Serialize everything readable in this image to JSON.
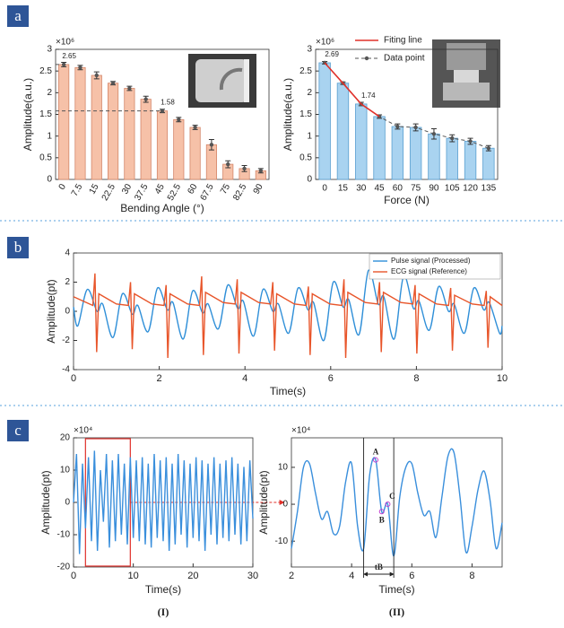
{
  "panel_labels": [
    "a",
    "b",
    "c"
  ],
  "chart_data": [
    {
      "type": "bar",
      "x_label": "Bending Angle (°)",
      "y_label": "Amplitude(a.u.)",
      "y_multiplier": "×10⁶",
      "categories": [
        "0",
        "7.5",
        "15",
        "22.5",
        "30",
        "37.5",
        "45",
        "52.5",
        "60",
        "67.5",
        "75",
        "82.5",
        "90"
      ],
      "values": [
        2.65,
        2.58,
        2.4,
        2.22,
        2.1,
        1.85,
        1.58,
        1.38,
        1.2,
        0.8,
        0.35,
        0.25,
        0.2
      ],
      "errors": [
        0.05,
        0.05,
        0.08,
        0.04,
        0.05,
        0.07,
        0.04,
        0.05,
        0.05,
        0.12,
        0.08,
        0.07,
        0.05
      ],
      "value_labels": [
        "2.65",
        null,
        null,
        null,
        null,
        null,
        "1.58",
        null,
        null,
        null,
        null,
        null,
        null
      ],
      "color": "#f6c1a8",
      "edge_color": "#d4876a",
      "rotate_labels": true,
      "ylim": [
        0,
        3
      ],
      "yticks": [
        0,
        0.5,
        1,
        1.5,
        2,
        2.5,
        3
      ]
    },
    {
      "type": "bar",
      "x_label": "Force (N)",
      "y_label": "Amplitude(a.u.)",
      "y_multiplier": "×10⁶",
      "categories": [
        "0",
        "15",
        "30",
        "45",
        "60",
        "75",
        "90",
        "105",
        "120",
        "135"
      ],
      "values": [
        2.69,
        2.22,
        1.74,
        1.45,
        1.22,
        1.2,
        1.05,
        0.95,
        0.88,
        0.72
      ],
      "errors": [
        0.03,
        0.03,
        0.04,
        0.04,
        0.06,
        0.08,
        0.12,
        0.08,
        0.07,
        0.06
      ],
      "value_labels": [
        "2.69",
        null,
        "1.74",
        null,
        null,
        null,
        null,
        null,
        null,
        null
      ],
      "color": "#a9d3f0",
      "edge_color": "#5a9fd0",
      "rotate_labels": false,
      "fit_line": {
        "name": "Fiting line",
        "color": "#e0302a",
        "values": [
          2.69,
          2.22,
          1.74,
          1.45
        ]
      },
      "data_point": {
        "name": "Data point",
        "color": "#555555"
      },
      "ylim": [
        0,
        3
      ],
      "yticks": [
        0,
        0.5,
        1,
        1.5,
        2,
        2.5,
        3
      ]
    },
    {
      "type": "line",
      "x_label": "Time(s)",
      "y_label": "Amplitude(pt)",
      "smooth": true,
      "legend": "upper right",
      "xlim": [
        0,
        10
      ],
      "xticks": [
        0,
        2,
        4,
        6,
        8,
        10
      ],
      "ylim": [
        -4,
        4
      ],
      "yticks": [
        -4,
        -2,
        0,
        2,
        4
      ],
      "series": [
        {
          "name": "Pulse signal (Processed)",
          "color": "#2f8fd8",
          "x": [
            0,
            0.1,
            0.32,
            0.55,
            0.68,
            0.92,
            1.14,
            1.37,
            1.5,
            1.74,
            1.96,
            2.19,
            2.32,
            2.56,
            2.78,
            3.01,
            3.14,
            3.38,
            3.6,
            3.83,
            3.96,
            4.2,
            4.42,
            4.65,
            4.78,
            5.02,
            5.24,
            5.47,
            5.6,
            5.84,
            6.06,
            6.29,
            6.42,
            6.66,
            6.88,
            7.11,
            7.24,
            7.48,
            7.7,
            7.93,
            8.06,
            8.3,
            8.52,
            8.75,
            8.88,
            9.12,
            9.34,
            9.57,
            9.7,
            9.94,
            10
          ],
          "values": [
            0.3,
            -1.0,
            1.5,
            0.0,
            0.5,
            -1.8,
            1.2,
            -0.2,
            0.4,
            -1.4,
            1.6,
            0.1,
            0.6,
            -1.9,
            1.4,
            -0.1,
            0.5,
            -1.2,
            1.8,
            0.2,
            0.7,
            -1.7,
            1.5,
            0.0,
            0.5,
            -1.5,
            1.6,
            0.1,
            0.6,
            -2.0,
            2.0,
            0.3,
            0.8,
            -1.6,
            2.8,
            0.5,
            1.0,
            -1.9,
            2.4,
            0.2,
            0.7,
            -1.3,
            1.7,
            0.0,
            0.5,
            -1.5,
            1.6,
            0.1,
            0.6,
            -1.5,
            -1.0
          ]
        },
        {
          "name": "ECG signal (Reference)",
          "color": "#e8552a",
          "smooth": false,
          "x": [
            0,
            0.45,
            0.5,
            0.54,
            0.59,
            1.0,
            1.28,
            1.33,
            1.37,
            1.42,
            1.83,
            2.11,
            2.16,
            2.2,
            2.25,
            2.66,
            2.94,
            2.99,
            3.03,
            3.08,
            3.49,
            3.77,
            3.82,
            3.86,
            3.91,
            4.32,
            4.6,
            4.65,
            4.69,
            4.74,
            5.15,
            5.43,
            5.48,
            5.52,
            5.57,
            5.98,
            6.26,
            6.31,
            6.35,
            6.4,
            6.81,
            7.09,
            7.14,
            7.18,
            7.23,
            7.64,
            7.92,
            7.97,
            8.01,
            8.06,
            8.47,
            8.75,
            8.8,
            8.84,
            8.89,
            9.3,
            9.58,
            9.63,
            9.67,
            9.72,
            10
          ],
          "values": [
            1.0,
            0.4,
            2.6,
            -2.8,
            1.2,
            0.5,
            0.4,
            2.0,
            -2.6,
            1.2,
            0.5,
            0.4,
            1.8,
            -3.2,
            1.2,
            0.5,
            0.4,
            2.4,
            -3.0,
            1.3,
            0.6,
            0.5,
            2.2,
            -2.9,
            1.3,
            0.6,
            0.5,
            2.0,
            -2.7,
            1.2,
            0.5,
            0.4,
            1.7,
            -3.0,
            1.2,
            0.5,
            0.4,
            2.2,
            -3.2,
            1.3,
            0.6,
            0.5,
            2.0,
            -2.8,
            1.3,
            0.6,
            0.5,
            1.8,
            -2.9,
            1.2,
            0.5,
            0.4,
            1.6,
            -2.7,
            1.1,
            0.5,
            0.4,
            1.4,
            -2.5,
            1.0,
            0.4
          ]
        }
      ]
    },
    {
      "type": "line",
      "x_label": "Time(s)",
      "y_label": "Amplitude(pt)",
      "y_multiplier": "×10⁴",
      "sub_label": "(I)",
      "smooth": false,
      "xlim": [
        0,
        30
      ],
      "xticks": [
        0,
        10,
        20,
        30
      ],
      "ylim": [
        -20,
        20
      ],
      "yticks": [
        -20,
        -10,
        0,
        10,
        20
      ],
      "highlight": [
        2,
        9.5
      ],
      "highlight_color": "#e0302a",
      "series": [
        {
          "color": "#3a8fdc",
          "x": [
            0,
            0.5,
            1,
            1.5,
            2,
            2.5,
            3,
            3.5,
            4,
            4.5,
            5,
            5.5,
            6,
            6.5,
            7,
            7.5,
            8,
            8.5,
            9,
            9.5,
            10,
            10.5,
            11,
            11.5,
            12,
            12.5,
            13,
            13.5,
            14,
            14.5,
            15,
            15.5,
            16,
            16.5,
            17,
            17.5,
            18,
            18.5,
            19,
            19.5,
            20,
            20.5,
            21,
            21.5,
            22,
            22.5,
            23,
            23.5,
            24,
            24.5,
            25,
            25.5,
            26,
            26.5,
            27,
            27.5,
            28,
            28.5,
            29,
            29.5,
            30
          ],
          "values": [
            0,
            15,
            -16,
            12,
            -8,
            14,
            -12,
            16,
            -15,
            10,
            -6,
            15,
            -14,
            13,
            -12,
            15,
            -10,
            12,
            -13,
            14,
            -11,
            13,
            -12,
            14,
            -13,
            12,
            -14,
            15,
            -11,
            13,
            -12,
            14,
            -15,
            12,
            -13,
            15,
            -10,
            13,
            -14,
            12,
            -11,
            14,
            -12,
            13,
            -15,
            12,
            -10,
            14,
            -13,
            12,
            -11,
            13,
            -12,
            14,
            -10,
            12,
            -13,
            11,
            -12,
            13,
            -5
          ]
        }
      ]
    },
    {
      "type": "line",
      "x_label": "Time(s)",
      "y_label": "Amplitude(pt)",
      "y_multiplier": "×10⁴",
      "sub_label": "(II)",
      "smooth": true,
      "xlim": [
        2,
        9
      ],
      "xticks": [
        2,
        4,
        6,
        8
      ],
      "ylim": [
        -17,
        18
      ],
      "yticks": [
        -10,
        0,
        10
      ],
      "vlines": [
        4.4,
        5.4
      ],
      "interval_label": "tB",
      "annotations": [
        {
          "text": "A",
          "x": 4.8,
          "y": 12
        },
        {
          "text": "B",
          "x": 5.0,
          "y": -2
        },
        {
          "text": "C",
          "x": 5.2,
          "y": 0
        }
      ],
      "series": [
        {
          "color": "#3a8fdc",
          "x": [
            2,
            2.2,
            2.4,
            2.6,
            2.8,
            3,
            3.2,
            3.4,
            3.6,
            3.8,
            4,
            4.2,
            4.4,
            4.6,
            4.8,
            5,
            5.2,
            5.4,
            5.6,
            5.8,
            6,
            6.2,
            6.4,
            6.6,
            6.8,
            7,
            7.2,
            7.4,
            7.6,
            7.8,
            8,
            8.2,
            8.4,
            8.6,
            8.8,
            9
          ],
          "values": [
            -12,
            -2,
            10,
            11,
            3,
            -4,
            -2,
            -8,
            -6,
            6,
            11,
            -6,
            -12,
            8,
            12,
            -2,
            0,
            -14,
            2,
            10,
            11,
            3,
            -3,
            -2,
            -9,
            2,
            13,
            14,
            2,
            -13,
            -6,
            4,
            9,
            1,
            -12,
            -5
          ]
        }
      ]
    }
  ]
}
